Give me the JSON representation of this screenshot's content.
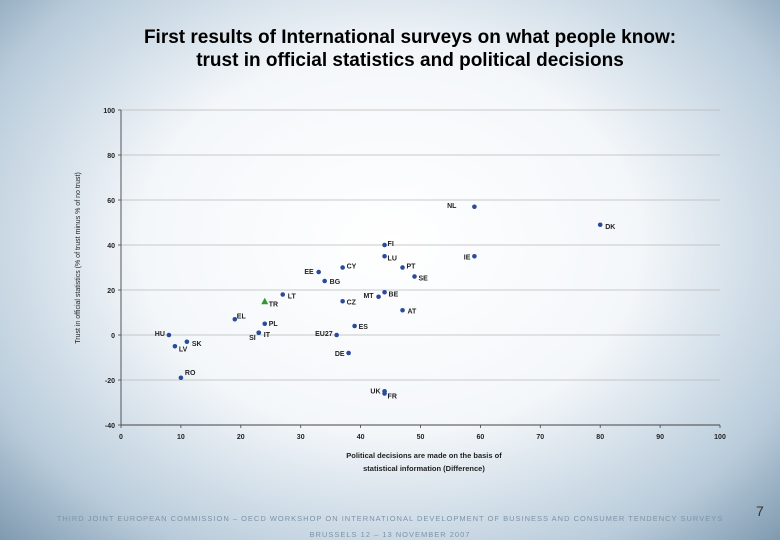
{
  "slide": {
    "title_line1": "First results of International surveys on what people know:",
    "title_line2": "trust in official statistics and political decisions",
    "footer_line1": "THIRD JOINT EUROPEAN COMMISSION – OECD WORKSHOP ON INTERNATIONAL DEVELOPMENT OF BUSINESS AND CONSUMER TENDENCY SURVEYS",
    "footer_line2": "BRUSSELS   12 – 13 NOVEMBER 2007",
    "page_number": "7"
  },
  "chart_data": {
    "type": "scatter",
    "title": "",
    "xlabel": "Political decisions are made on the basis of statistical information (Difference)",
    "xlabel_lines": [
      "Political decisions are made on the basis of",
      "statistical information (Difference)"
    ],
    "ylabel": "Trust in official statistics (% of trust minus % of no trust)",
    "xlim": [
      0,
      100
    ],
    "ylim": [
      -40,
      100
    ],
    "xticks": [
      0,
      10,
      20,
      30,
      40,
      50,
      60,
      70,
      80,
      90,
      100
    ],
    "yticks": [
      -40,
      -20,
      0,
      20,
      40,
      60,
      80,
      100
    ],
    "grid": "horizontal",
    "legend": "none",
    "marker_color": "#2a4a9a",
    "highlight_color": "#2e9a2e",
    "points": [
      {
        "label": "NL",
        "x": 59,
        "y": 57
      },
      {
        "label": "DK",
        "x": 80,
        "y": 49
      },
      {
        "label": "FI",
        "x": 44,
        "y": 40
      },
      {
        "label": "LU",
        "x": 44,
        "y": 35
      },
      {
        "label": "IE",
        "x": 59,
        "y": 35
      },
      {
        "label": "PT",
        "x": 47,
        "y": 30
      },
      {
        "label": "SE",
        "x": 49,
        "y": 26
      },
      {
        "label": "CY",
        "x": 37,
        "y": 30
      },
      {
        "label": "EE",
        "x": 33,
        "y": 28
      },
      {
        "label": "BG",
        "x": 34,
        "y": 24
      },
      {
        "label": "LT",
        "x": 27,
        "y": 18
      },
      {
        "label": "TR",
        "x": 24,
        "y": 15,
        "highlight": true
      },
      {
        "label": "MT",
        "x": 43,
        "y": 17
      },
      {
        "label": "BE",
        "x": 44,
        "y": 19
      },
      {
        "label": "CZ",
        "x": 37,
        "y": 15
      },
      {
        "label": "AT",
        "x": 47,
        "y": 11
      },
      {
        "label": "EL",
        "x": 19,
        "y": 7
      },
      {
        "label": "PL",
        "x": 24,
        "y": 5
      },
      {
        "label": "SI",
        "x": 23,
        "y": 1
      },
      {
        "label": "IT",
        "x": 23,
        "y": 1
      },
      {
        "label": "EU27",
        "x": 36,
        "y": 0
      },
      {
        "label": "ES",
        "x": 39,
        "y": 4
      },
      {
        "label": "HU",
        "x": 8,
        "y": 0
      },
      {
        "label": "SK",
        "x": 11,
        "y": -3
      },
      {
        "label": "LV",
        "x": 9,
        "y": -5
      },
      {
        "label": "DE",
        "x": 38,
        "y": -8
      },
      {
        "label": "RO",
        "x": 10,
        "y": -19
      },
      {
        "label": "UK",
        "x": 44,
        "y": -25
      },
      {
        "label": "FR",
        "x": 44,
        "y": -26
      }
    ]
  }
}
